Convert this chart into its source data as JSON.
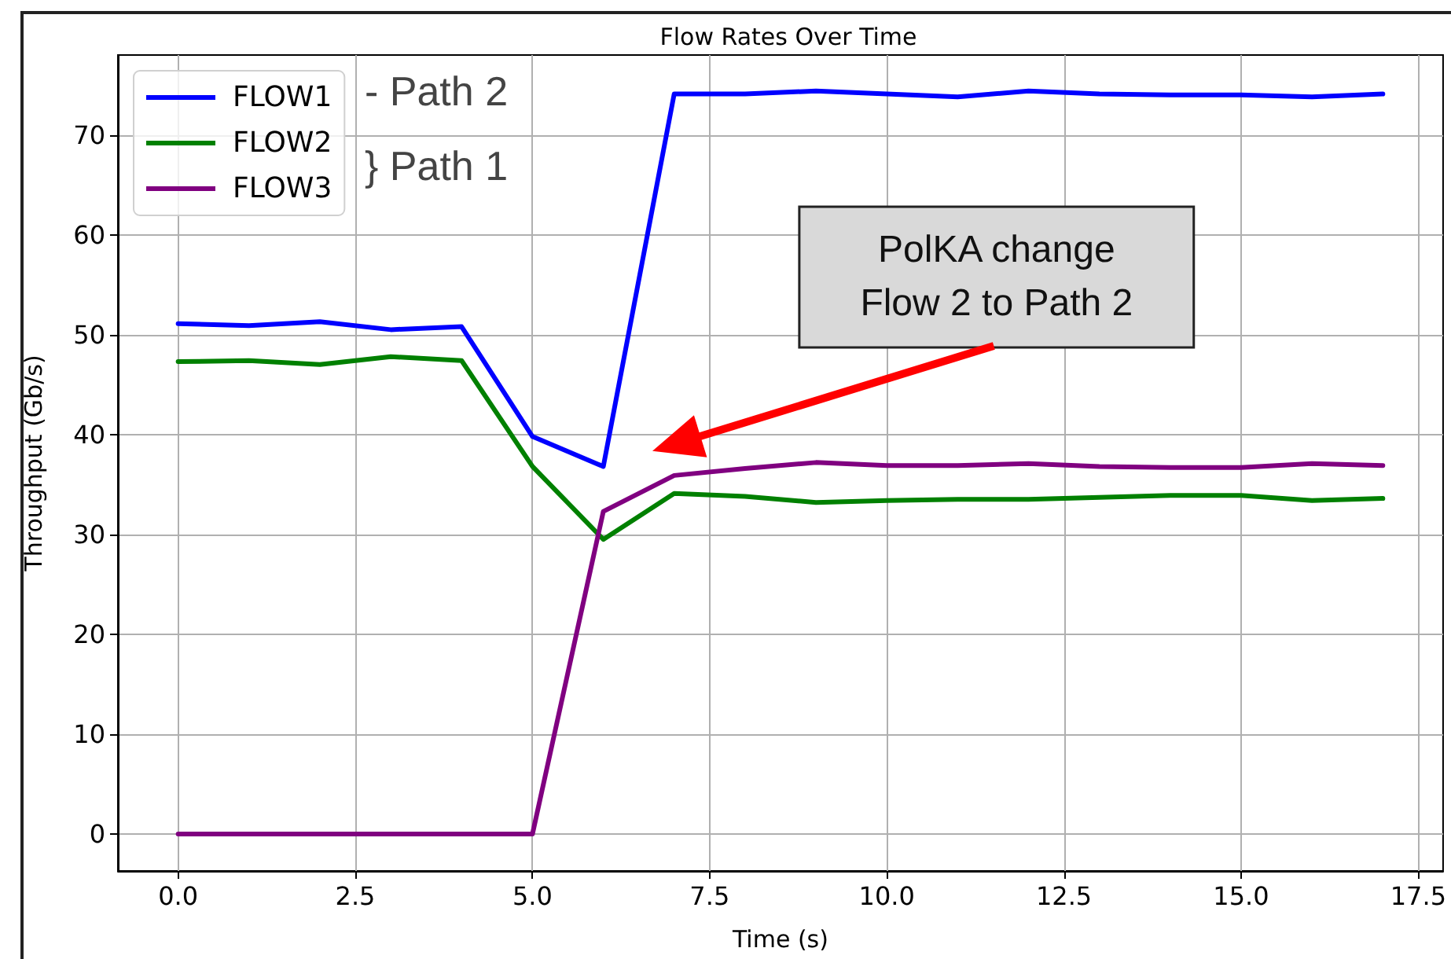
{
  "chart_data": {
    "type": "line",
    "title": "Flow Rates Over Time",
    "xlabel": "Time (s)",
    "ylabel": "Throughput (Gb/s)",
    "x": [
      0,
      1,
      2,
      3,
      4,
      5,
      6,
      7,
      8,
      9,
      10,
      11,
      12,
      13,
      14,
      15,
      16,
      17
    ],
    "series": [
      {
        "name": "FLOW1",
        "color": "#0000ff",
        "values": [
          51.1,
          50.9,
          51.3,
          50.5,
          50.8,
          39.8,
          36.8,
          74.1,
          74.1,
          74.4,
          74.1,
          73.8,
          74.4,
          74.1,
          74.0,
          74.0,
          73.8,
          74.1
        ]
      },
      {
        "name": "FLOW2",
        "color": "#008000",
        "values": [
          47.3,
          47.4,
          47.0,
          47.8,
          47.4,
          36.8,
          29.5,
          34.1,
          33.8,
          33.2,
          33.4,
          33.5,
          33.5,
          33.7,
          33.9,
          33.9,
          33.4,
          33.6
        ]
      },
      {
        "name": "FLOW3",
        "color": "#800080",
        "values": [
          0,
          0,
          0,
          0,
          0,
          0,
          32.3,
          35.9,
          36.6,
          37.2,
          36.9,
          36.9,
          37.1,
          36.8,
          36.7,
          36.7,
          37.1,
          36.9
        ]
      }
    ],
    "xlim": [
      -0.85,
      17.85
    ],
    "ylim": [
      -3.7,
      78
    ],
    "xticks": [
      {
        "value": 0,
        "label": "0.0"
      },
      {
        "value": 2.5,
        "label": "2.5"
      },
      {
        "value": 5,
        "label": "5.0"
      },
      {
        "value": 7.5,
        "label": "7.5"
      },
      {
        "value": 10,
        "label": "10.0"
      },
      {
        "value": 12.5,
        "label": "12.5"
      },
      {
        "value": 15,
        "label": "15.0"
      },
      {
        "value": 17.5,
        "label": "17.5"
      }
    ],
    "yticks": [
      0,
      10,
      20,
      30,
      40,
      50,
      60,
      70
    ],
    "grid": true,
    "legend": "top left",
    "annotations": [
      "- Path 2",
      "} Path 1",
      "PolKA change\nFlow 2 to Path 2"
    ]
  }
}
